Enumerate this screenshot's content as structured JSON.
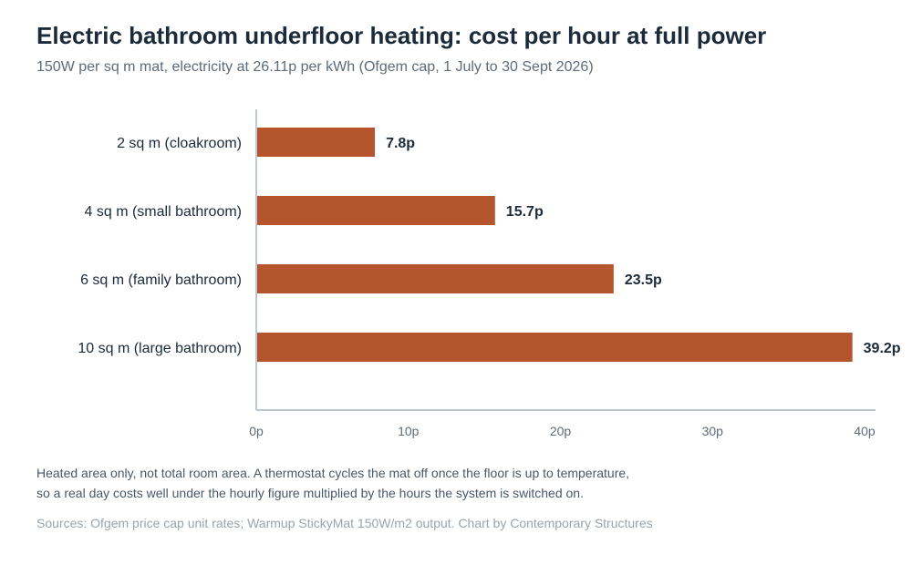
{
  "header": {
    "title": "Electric bathroom underfloor heating: cost per hour at full power",
    "subtitle": "150W per sq m mat, electricity at 26.11p per kWh (Ofgem cap, 1 July to 30 Sept 2026)"
  },
  "chart_data": {
    "type": "bar",
    "orientation": "horizontal",
    "categories": [
      "2 sq m (cloakroom)",
      "4 sq m (small bathroom)",
      "6 sq m (family bathroom)",
      "10 sq m (large bathroom)"
    ],
    "values": [
      7.8,
      15.7,
      23.5,
      39.2
    ],
    "value_labels": [
      "7.8p",
      "15.7p",
      "23.5p",
      "39.2p"
    ],
    "xlim": [
      0,
      40
    ],
    "x_ticks": [
      0,
      10,
      20,
      30,
      40
    ],
    "x_tick_labels": [
      "0p",
      "10p",
      "20p",
      "30p",
      "40p"
    ],
    "grid": false,
    "bar_color": "#b5552e"
  },
  "footer": {
    "note_line1": "Heated area only, not total room area. A thermostat cycles the mat off once the floor is up to temperature,",
    "note_line2": "so a real day costs well under the hourly figure multiplied by the hours the system is switched on.",
    "sources": "Sources: Ofgem price cap unit rates; Warmup StickyMat 150W/m2 output. Chart by Contemporary Structures"
  }
}
